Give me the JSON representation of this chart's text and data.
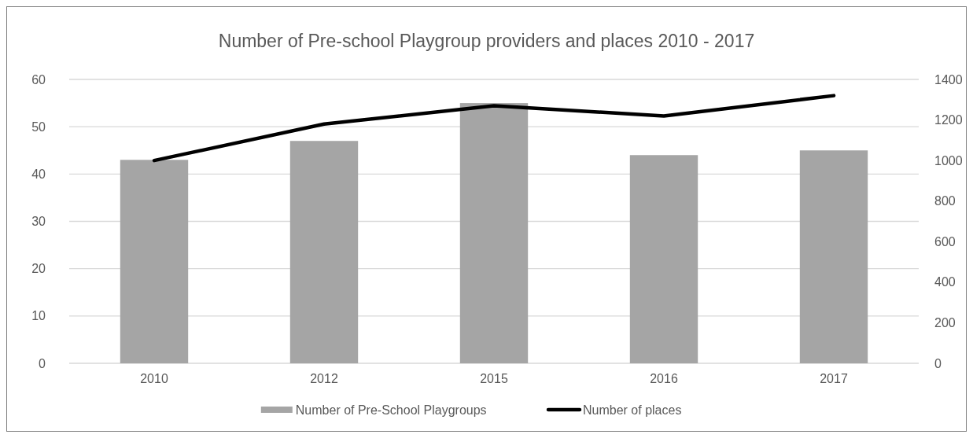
{
  "chart_data": {
    "type": "bar",
    "title": "Number of Pre-school Playgroup providers and places 2010 - 2017",
    "categories": [
      "2010",
      "2012",
      "2015",
      "2016",
      "2017"
    ],
    "series": [
      {
        "name": "Number of Pre-School Playgroups",
        "color": "#a5a5a5",
        "values": [
          43,
          47,
          55,
          44,
          45
        ]
      },
      {
        "name": "Number of places",
        "color": "#000000",
        "type": "line",
        "axis": "y2",
        "values": [
          1000,
          1180,
          1270,
          1220,
          1320
        ]
      }
    ],
    "ylim": [
      0,
      60
    ],
    "yticks": [
      0,
      10,
      20,
      30,
      40,
      50,
      60
    ],
    "y2lim": [
      0,
      1400
    ],
    "y2ticks": [
      0,
      200,
      400,
      600,
      800,
      1000,
      1200,
      1400
    ],
    "grid": "y",
    "legend": "bottom",
    "marker": "none",
    "line_style": "solid"
  }
}
